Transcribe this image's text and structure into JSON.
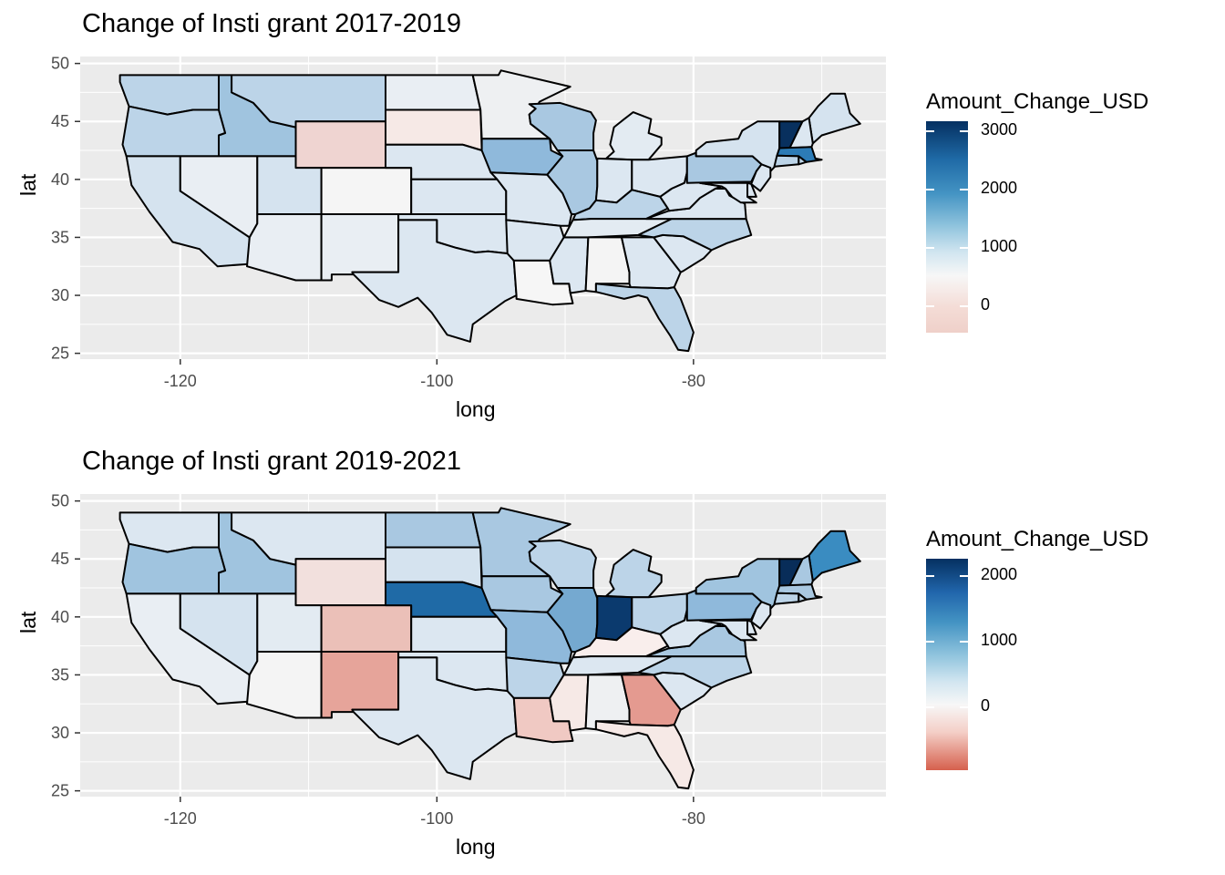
{
  "axes": {
    "x_label": "long",
    "y_label": "lat",
    "x_ticks": [
      "-120",
      "-100",
      "-80"
    ],
    "y_ticks": [
      "25",
      "30",
      "35",
      "40",
      "45",
      "50"
    ]
  },
  "colors": {
    "panel_bg": "#ebebeb",
    "grid": "#ffffff",
    "state_border": "#000000",
    "scale_low": "#d6604d",
    "scale_mid": "#f7f7f7",
    "scale_high": "#053061"
  },
  "panels": [
    {
      "title": "Change of Insti grant 2017-2019",
      "legend": {
        "title": "Amount_Change_USD",
        "ticks": [
          "3000",
          "2000",
          "1000",
          "0"
        ]
      },
      "fills": {
        "WA": "#bcd4e8",
        "OR": "#bcd4e8",
        "CA": "#d5e3ef",
        "ID": "#a0c4df",
        "NV": "#e9eef3",
        "MT": "#bcd4e8",
        "WY": "#efd4d1",
        "UT": "#d5e3ef",
        "AZ": "#e9eef3",
        "CO": "#f5f5f5",
        "NM": "#e9eef3",
        "ND": "#e9eef3",
        "SD": "#f6e9e6",
        "NE": "#dce7f1",
        "KS": "#dce7f1",
        "OK": "#dce7f1",
        "TX": "#dce7f1",
        "MN": "#eef0f2",
        "IA": "#8fb9db",
        "MO": "#dce7f1",
        "AR": "#dce7f1",
        "LA": "#f6f6f6",
        "WI": "#a9c8e1",
        "IL": "#a9c8e1",
        "MS": "#dce7f1",
        "MI": "#e3ebf2",
        "IN": "#dce7f1",
        "OH": "#dce7f1",
        "KY": "#bcd4e8",
        "TN": "#e3ebf2",
        "AL": "#f4f4f4",
        "GA": "#dce7f1",
        "FL": "#bcd4e8",
        "SC": "#dce7f1",
        "NC": "#bcd4e8",
        "VA": "#dce7f1",
        "WV": "#dce7f1",
        "PA": "#a9c8e1",
        "NY": "#d5e3ef",
        "ME": "#d5e3ef",
        "VT": "#08305e",
        "NH": "#dce7f1",
        "MA": "#2c7bb6",
        "CT": "#bcd4e8",
        "RI": "#bcd4e8",
        "NJ": "#dce7f1",
        "MD": "#dce7f1",
        "DE": "#dce7f1"
      }
    },
    {
      "title": "Change of Insti grant 2019-2021",
      "legend": {
        "title": "Amount_Change_USD",
        "ticks": [
          "2000",
          "1000",
          "0"
        ]
      },
      "fills": {
        "WA": "#dce7f1",
        "OR": "#a0c4df",
        "CA": "#e9eef3",
        "ID": "#a0c4df",
        "NV": "#d5e3ef",
        "MT": "#dce7f1",
        "WY": "#f2e0dd",
        "UT": "#e3ebf2",
        "AZ": "#f4f4f4",
        "CO": "#ebc0b8",
        "NM": "#e6a49a",
        "ND": "#a9c8e1",
        "SD": "#d5e3ef",
        "NE": "#1f6aa6",
        "KS": "#dce7f1",
        "OK": "#dce7f1",
        "TX": "#dce7f1",
        "MN": "#a9c8e1",
        "IA": "#a9c8e1",
        "MO": "#8fb9db",
        "AR": "#bcd4e8",
        "LA": "#f0c9c3",
        "WI": "#bcd4e8",
        "IL": "#75a9d0",
        "MS": "#f6e9e6",
        "MI": "#bcd4e8",
        "IN": "#0b3a6e",
        "OH": "#bcd4e8",
        "KY": "#f9eeec",
        "TN": "#dce7f1",
        "AL": "#eef0f2",
        "GA": "#e49a90",
        "FL": "#f6e9e6",
        "SC": "#dce7f1",
        "NC": "#bcd4e8",
        "VA": "#a9c8e1",
        "WV": "#dce7f1",
        "PA": "#8fb9db",
        "NY": "#a0c4df",
        "ME": "#3a8cc1",
        "VT": "#082d59",
        "NH": "#a9c8e1",
        "MA": "#a9c8e1",
        "CT": "#bcd4e8",
        "RI": "#bcd4e8",
        "NJ": "#dce7f1",
        "MD": "#dce7f1",
        "DE": "#dce7f1"
      }
    }
  ]
}
